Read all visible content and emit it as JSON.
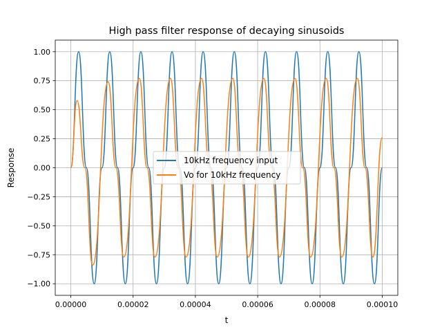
{
  "chart_data": {
    "type": "line",
    "title": "High pass filter response of decaying sinusoids",
    "xlabel": "t",
    "ylabel": "Response",
    "xlim": [
      -5e-06,
      0.000105
    ],
    "ylim": [
      -1.1,
      1.1
    ],
    "x_ticks": [
      0.0,
      2e-05,
      4e-05,
      6e-05,
      8e-05,
      0.0001
    ],
    "x_tick_labels": [
      "0.00000",
      "0.00002",
      "0.00004",
      "0.00006",
      "0.00008",
      "0.00010"
    ],
    "y_ticks": [
      -1.0,
      -0.75,
      -0.5,
      -0.25,
      0.0,
      0.25,
      0.5,
      0.75,
      1.0
    ],
    "y_tick_labels": [
      "−1.00",
      "−0.75",
      "−0.50",
      "−0.25",
      "0.00",
      "0.25",
      "0.50",
      "0.75",
      "1.00"
    ],
    "grid": true,
    "legend_position": "center",
    "series": [
      {
        "name": "10kHz frequency input",
        "color": "#1f77b4",
        "x": [
          0.0,
          2.5e-06,
          5e-06,
          7.5e-06,
          1e-05,
          1.25e-05,
          1.5e-05,
          1.75e-05,
          2e-05,
          2.25e-05,
          2.5e-05,
          2.75e-05,
          3e-05,
          3.25e-05,
          3.5e-05,
          3.75e-05,
          4e-05,
          4.25e-05,
          4.5e-05,
          4.75e-05,
          5e-05,
          5.25e-05,
          5.5e-05,
          5.75e-05,
          6e-05,
          6.25e-05,
          6.5e-05,
          6.75e-05,
          7e-05,
          7.25e-05,
          7.5e-05,
          7.75e-05,
          8e-05,
          8.25e-05,
          8.5e-05,
          8.75e-05,
          9e-05,
          9.25e-05,
          9.5e-05,
          9.75e-05,
          0.0001
        ],
        "y": [
          0.0,
          1.0,
          0.0,
          -1.0,
          0.0,
          1.0,
          0.0,
          -1.0,
          0.0,
          1.0,
          0.0,
          -1.0,
          0.0,
          1.0,
          0.0,
          -1.0,
          0.0,
          1.0,
          0.0,
          -1.0,
          0.0,
          1.0,
          0.0,
          -1.0,
          0.0,
          1.0,
          0.0,
          -1.0,
          0.0,
          1.0,
          0.0,
          -1.0,
          0.0,
          1.0,
          0.0,
          -1.0,
          0.0,
          1.0,
          0.0,
          -1.0,
          0.0
        ]
      },
      {
        "name": "Vo for 10kHz frequency",
        "color": "#ff7f0e",
        "x": [
          0.0,
          2e-06,
          4.5e-06,
          7e-06,
          1.2e-05,
          1.45e-05,
          1.7e-05,
          2.2e-05,
          2.45e-05,
          2.7e-05,
          3.2e-05,
          3.45e-05,
          3.7e-05,
          4.2e-05,
          4.45e-05,
          4.7e-05,
          5.2e-05,
          5.45e-05,
          5.7e-05,
          6.2e-05,
          6.45e-05,
          6.7e-05,
          7.2e-05,
          7.45e-05,
          7.7e-05,
          8.2e-05,
          8.45e-05,
          8.7e-05,
          9.2e-05,
          9.45e-05,
          9.7e-05,
          0.0001
        ],
        "y": [
          0.0,
          0.58,
          0.0,
          -0.84,
          0.74,
          0.0,
          -0.77,
          0.77,
          0.0,
          -0.77,
          0.77,
          0.0,
          -0.77,
          0.77,
          0.0,
          -0.77,
          0.77,
          0.0,
          -0.77,
          0.77,
          0.0,
          -0.77,
          0.77,
          0.0,
          -0.77,
          0.77,
          0.0,
          -0.77,
          0.77,
          0.0,
          -0.77,
          0.26
        ]
      }
    ]
  }
}
